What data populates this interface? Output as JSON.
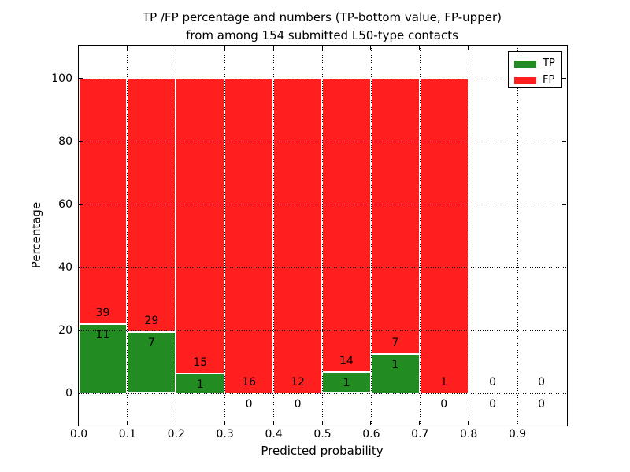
{
  "chart_data": {
    "type": "bar",
    "stacked": true,
    "title_line1": "TP /FP percentage and numbers (TP-bottom value, FP-upper)",
    "title_line2": "from among 154 submitted L50-type contacts",
    "xlabel": "Predicted probability",
    "ylabel": "Percentage",
    "total_contacts": 154,
    "bin_width": 0.1,
    "bins": [
      {
        "range": [
          0.0,
          0.1
        ],
        "tp_count": 11,
        "fp_count": 39,
        "tp_pct": 22.0,
        "fp_pct": 78.0,
        "has_bar": true
      },
      {
        "range": [
          0.1,
          0.2
        ],
        "tp_count": 7,
        "fp_count": 29,
        "tp_pct": 19.44,
        "fp_pct": 80.56,
        "has_bar": true
      },
      {
        "range": [
          0.2,
          0.3
        ],
        "tp_count": 1,
        "fp_count": 15,
        "tp_pct": 6.25,
        "fp_pct": 93.75,
        "has_bar": true
      },
      {
        "range": [
          0.3,
          0.4
        ],
        "tp_count": 0,
        "fp_count": 16,
        "tp_pct": 0,
        "fp_pct": 100,
        "has_bar": true
      },
      {
        "range": [
          0.4,
          0.5
        ],
        "tp_count": 0,
        "fp_count": 12,
        "tp_pct": 0,
        "fp_pct": 100,
        "has_bar": true
      },
      {
        "range": [
          0.5,
          0.6
        ],
        "tp_count": 1,
        "fp_count": 14,
        "tp_pct": 6.67,
        "fp_pct": 93.33,
        "has_bar": true
      },
      {
        "range": [
          0.6,
          0.7
        ],
        "tp_count": 1,
        "fp_count": 7,
        "tp_pct": 12.5,
        "fp_pct": 87.5,
        "has_bar": true
      },
      {
        "range": [
          0.7,
          0.8
        ],
        "tp_count": 0,
        "fp_count": 1,
        "tp_pct": 0,
        "fp_pct": 100,
        "has_bar": true
      },
      {
        "range": [
          0.8,
          0.9
        ],
        "tp_count": 0,
        "fp_count": 0,
        "tp_pct": 0,
        "fp_pct": 0,
        "has_bar": false
      },
      {
        "range": [
          0.9,
          1.0
        ],
        "tp_count": 0,
        "fp_count": 0,
        "tp_pct": 0,
        "fp_pct": 0,
        "has_bar": false
      }
    ],
    "legend": [
      {
        "label": "TP",
        "color": "#228b22"
      },
      {
        "label": "FP",
        "color": "#ff1f1f"
      }
    ],
    "legend_position": "upper right",
    "colors": {
      "tp": "#228b22",
      "fp": "#ff1f1f",
      "bar_edge": "#ffffff",
      "grid": "#000000",
      "axis": "#000000"
    },
    "xticks": [
      "0.0",
      "0.1",
      "0.2",
      "0.3",
      "0.4",
      "0.5",
      "0.6",
      "0.7",
      "0.8",
      "0.9"
    ],
    "yticks": [
      "0",
      "20",
      "40",
      "60",
      "80",
      "100"
    ],
    "ylim": [
      -10,
      110.5
    ],
    "xlim": [
      0.0,
      1.0
    ],
    "grid": "dotted"
  }
}
